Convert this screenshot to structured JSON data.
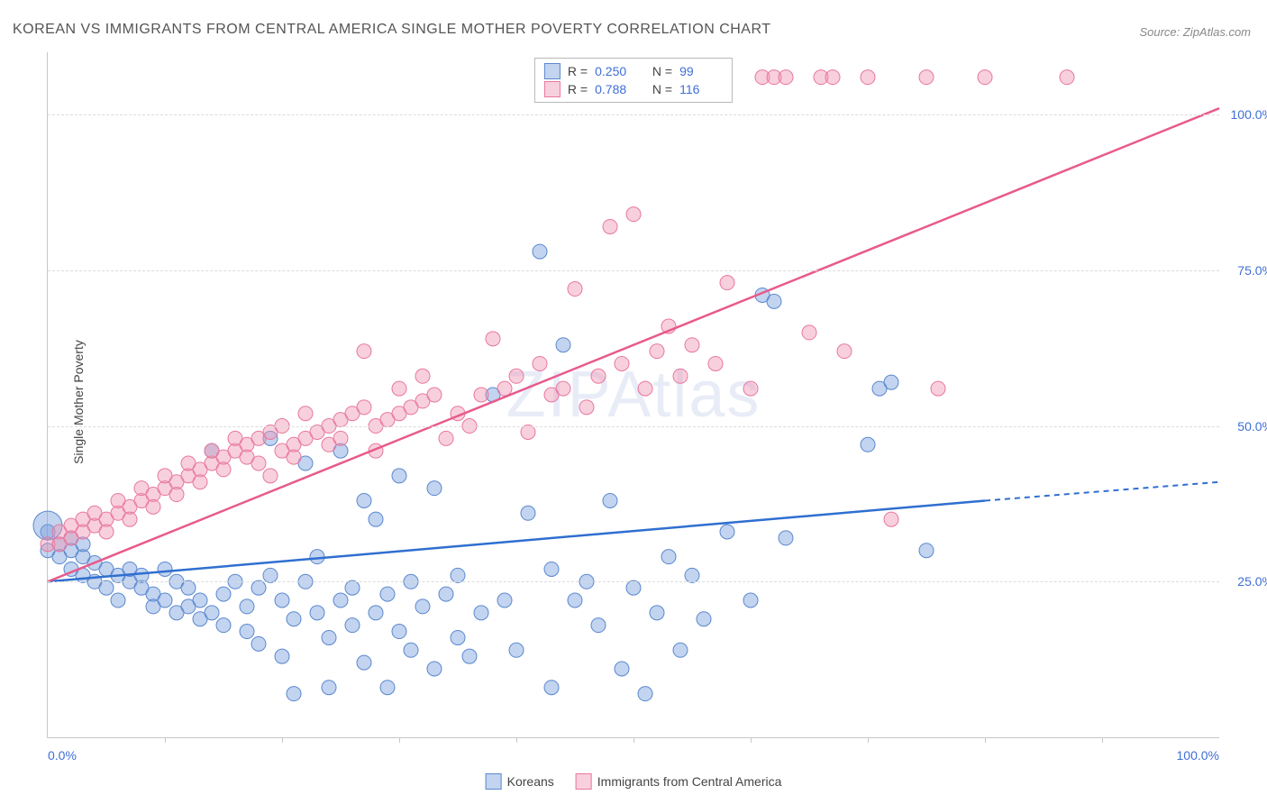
{
  "title": "KOREAN VS IMMIGRANTS FROM CENTRAL AMERICA SINGLE MOTHER POVERTY CORRELATION CHART",
  "source": "Source: ZipAtlas.com",
  "ylabel": "Single Mother Poverty",
  "watermark": "ZIPAtlas",
  "chart": {
    "type": "scatter",
    "xlim": [
      0,
      100
    ],
    "ylim": [
      0,
      110
    ],
    "xtick_labels": [
      "0.0%",
      "100.0%"
    ],
    "xtick_positions": [
      0,
      100
    ],
    "xtick_minor_positions": [
      10,
      20,
      30,
      40,
      50,
      60,
      70,
      80,
      90
    ],
    "ytick_labels": [
      "25.0%",
      "50.0%",
      "75.0%",
      "100.0%"
    ],
    "ytick_positions": [
      25,
      50,
      75,
      100
    ],
    "grid_color": "#dcdcdc",
    "background_color": "#ffffff",
    "axis_color": "#c7c7c7",
    "label_color": "#3f6fd6",
    "series": [
      {
        "name": "Koreans",
        "fill": "rgba(120,160,220,0.45)",
        "stroke": "#5b88cf",
        "line_color": "#2f6fd0",
        "trend": {
          "x1": 0,
          "y1": 25,
          "x2": 80,
          "y2": 38,
          "dash_x2": 100,
          "dash_y2": 41
        },
        "R": "0.250",
        "N": "99",
        "marker_r": 8,
        "points": [
          [
            0,
            33
          ],
          [
            0,
            30
          ],
          [
            0,
            34,
            16
          ],
          [
            1,
            31
          ],
          [
            1,
            29
          ],
          [
            2,
            30
          ],
          [
            2,
            27
          ],
          [
            2,
            32
          ],
          [
            3,
            29
          ],
          [
            3,
            26
          ],
          [
            3,
            31
          ],
          [
            4,
            28
          ],
          [
            4,
            25
          ],
          [
            5,
            27
          ],
          [
            5,
            24
          ],
          [
            6,
            26
          ],
          [
            6,
            22
          ],
          [
            7,
            25
          ],
          [
            7,
            27
          ],
          [
            8,
            24
          ],
          [
            8,
            26
          ],
          [
            9,
            23
          ],
          [
            9,
            21
          ],
          [
            10,
            22
          ],
          [
            10,
            27
          ],
          [
            11,
            25
          ],
          [
            11,
            20
          ],
          [
            12,
            21
          ],
          [
            12,
            24
          ],
          [
            13,
            22
          ],
          [
            13,
            19
          ],
          [
            14,
            20
          ],
          [
            14,
            46
          ],
          [
            15,
            23
          ],
          [
            15,
            18
          ],
          [
            16,
            25
          ],
          [
            17,
            21
          ],
          [
            17,
            17
          ],
          [
            18,
            24
          ],
          [
            18,
            15
          ],
          [
            19,
            26
          ],
          [
            19,
            48
          ],
          [
            20,
            22
          ],
          [
            20,
            13
          ],
          [
            21,
            19
          ],
          [
            21,
            7
          ],
          [
            22,
            25
          ],
          [
            22,
            44
          ],
          [
            23,
            20
          ],
          [
            23,
            29
          ],
          [
            24,
            16
          ],
          [
            24,
            8
          ],
          [
            25,
            22
          ],
          [
            25,
            46
          ],
          [
            26,
            24
          ],
          [
            26,
            18
          ],
          [
            27,
            12
          ],
          [
            27,
            38
          ],
          [
            28,
            20
          ],
          [
            28,
            35
          ],
          [
            29,
            23
          ],
          [
            29,
            8
          ],
          [
            30,
            17
          ],
          [
            30,
            42
          ],
          [
            31,
            25
          ],
          [
            31,
            14
          ],
          [
            32,
            21
          ],
          [
            33,
            40
          ],
          [
            33,
            11
          ],
          [
            34,
            23
          ],
          [
            35,
            26
          ],
          [
            35,
            16
          ],
          [
            36,
            13
          ],
          [
            37,
            20
          ],
          [
            38,
            55
          ],
          [
            39,
            22
          ],
          [
            40,
            14
          ],
          [
            41,
            36
          ],
          [
            42,
            78
          ],
          [
            43,
            27
          ],
          [
            43,
            8
          ],
          [
            44,
            63
          ],
          [
            45,
            22
          ],
          [
            46,
            25
          ],
          [
            47,
            18
          ],
          [
            48,
            38
          ],
          [
            49,
            11
          ],
          [
            50,
            24
          ],
          [
            51,
            7
          ],
          [
            52,
            20
          ],
          [
            53,
            29
          ],
          [
            54,
            14
          ],
          [
            55,
            26
          ],
          [
            56,
            19
          ],
          [
            58,
            33
          ],
          [
            60,
            22
          ],
          [
            61,
            71
          ],
          [
            62,
            70
          ],
          [
            63,
            32
          ],
          [
            70,
            47
          ],
          [
            71,
            56
          ],
          [
            72,
            57
          ],
          [
            75,
            30
          ]
        ]
      },
      {
        "name": "Immigrants from Central America",
        "fill": "rgba(240,150,180,0.45)",
        "stroke": "#e8779f",
        "line_color": "#e85a8c",
        "trend": {
          "x1": 0,
          "y1": 25,
          "x2": 100,
          "y2": 101
        },
        "R": "0.788",
        "N": "116",
        "marker_r": 8,
        "points": [
          [
            0,
            31
          ],
          [
            1,
            33
          ],
          [
            1,
            31
          ],
          [
            2,
            32
          ],
          [
            2,
            34
          ],
          [
            3,
            33
          ],
          [
            3,
            35
          ],
          [
            4,
            34
          ],
          [
            4,
            36
          ],
          [
            5,
            35
          ],
          [
            5,
            33
          ],
          [
            6,
            36
          ],
          [
            6,
            38
          ],
          [
            7,
            37
          ],
          [
            7,
            35
          ],
          [
            8,
            38
          ],
          [
            8,
            40
          ],
          [
            9,
            39
          ],
          [
            9,
            37
          ],
          [
            10,
            40
          ],
          [
            10,
            42
          ],
          [
            11,
            41
          ],
          [
            11,
            39
          ],
          [
            12,
            42
          ],
          [
            12,
            44
          ],
          [
            13,
            43
          ],
          [
            13,
            41
          ],
          [
            14,
            44
          ],
          [
            14,
            46
          ],
          [
            15,
            45
          ],
          [
            15,
            43
          ],
          [
            16,
            46
          ],
          [
            16,
            48
          ],
          [
            17,
            47
          ],
          [
            17,
            45
          ],
          [
            18,
            48
          ],
          [
            18,
            44
          ],
          [
            19,
            49
          ],
          [
            19,
            42
          ],
          [
            20,
            46
          ],
          [
            20,
            50
          ],
          [
            21,
            47
          ],
          [
            21,
            45
          ],
          [
            22,
            48
          ],
          [
            22,
            52
          ],
          [
            23,
            49
          ],
          [
            24,
            50
          ],
          [
            24,
            47
          ],
          [
            25,
            51
          ],
          [
            25,
            48
          ],
          [
            26,
            52
          ],
          [
            27,
            53
          ],
          [
            27,
            62
          ],
          [
            28,
            50
          ],
          [
            28,
            46
          ],
          [
            29,
            51
          ],
          [
            30,
            52
          ],
          [
            30,
            56
          ],
          [
            31,
            53
          ],
          [
            32,
            54
          ],
          [
            32,
            58
          ],
          [
            33,
            55
          ],
          [
            34,
            48
          ],
          [
            35,
            52
          ],
          [
            36,
            50
          ],
          [
            37,
            55
          ],
          [
            38,
            64
          ],
          [
            39,
            56
          ],
          [
            40,
            58
          ],
          [
            41,
            49
          ],
          [
            42,
            60
          ],
          [
            43,
            55
          ],
          [
            44,
            56
          ],
          [
            45,
            72
          ],
          [
            46,
            53
          ],
          [
            47,
            58
          ],
          [
            48,
            82
          ],
          [
            49,
            60
          ],
          [
            50,
            84
          ],
          [
            51,
            56
          ],
          [
            52,
            62
          ],
          [
            53,
            66
          ],
          [
            54,
            58
          ],
          [
            55,
            63
          ],
          [
            57,
            60
          ],
          [
            58,
            73
          ],
          [
            60,
            56
          ],
          [
            61,
            106
          ],
          [
            62,
            106
          ],
          [
            63,
            106
          ],
          [
            65,
            65
          ],
          [
            66,
            106
          ],
          [
            67,
            106
          ],
          [
            68,
            62
          ],
          [
            70,
            106
          ],
          [
            72,
            35
          ],
          [
            75,
            106
          ],
          [
            76,
            56
          ],
          [
            80,
            106
          ],
          [
            87,
            106
          ]
        ]
      }
    ]
  },
  "legend": {
    "swatch_border": {
      "koreans": "#5b88cf",
      "central": "#e8779f"
    },
    "swatch_fill": {
      "koreans": "rgba(120,160,220,0.45)",
      "central": "rgba(240,150,180,0.45)"
    }
  }
}
